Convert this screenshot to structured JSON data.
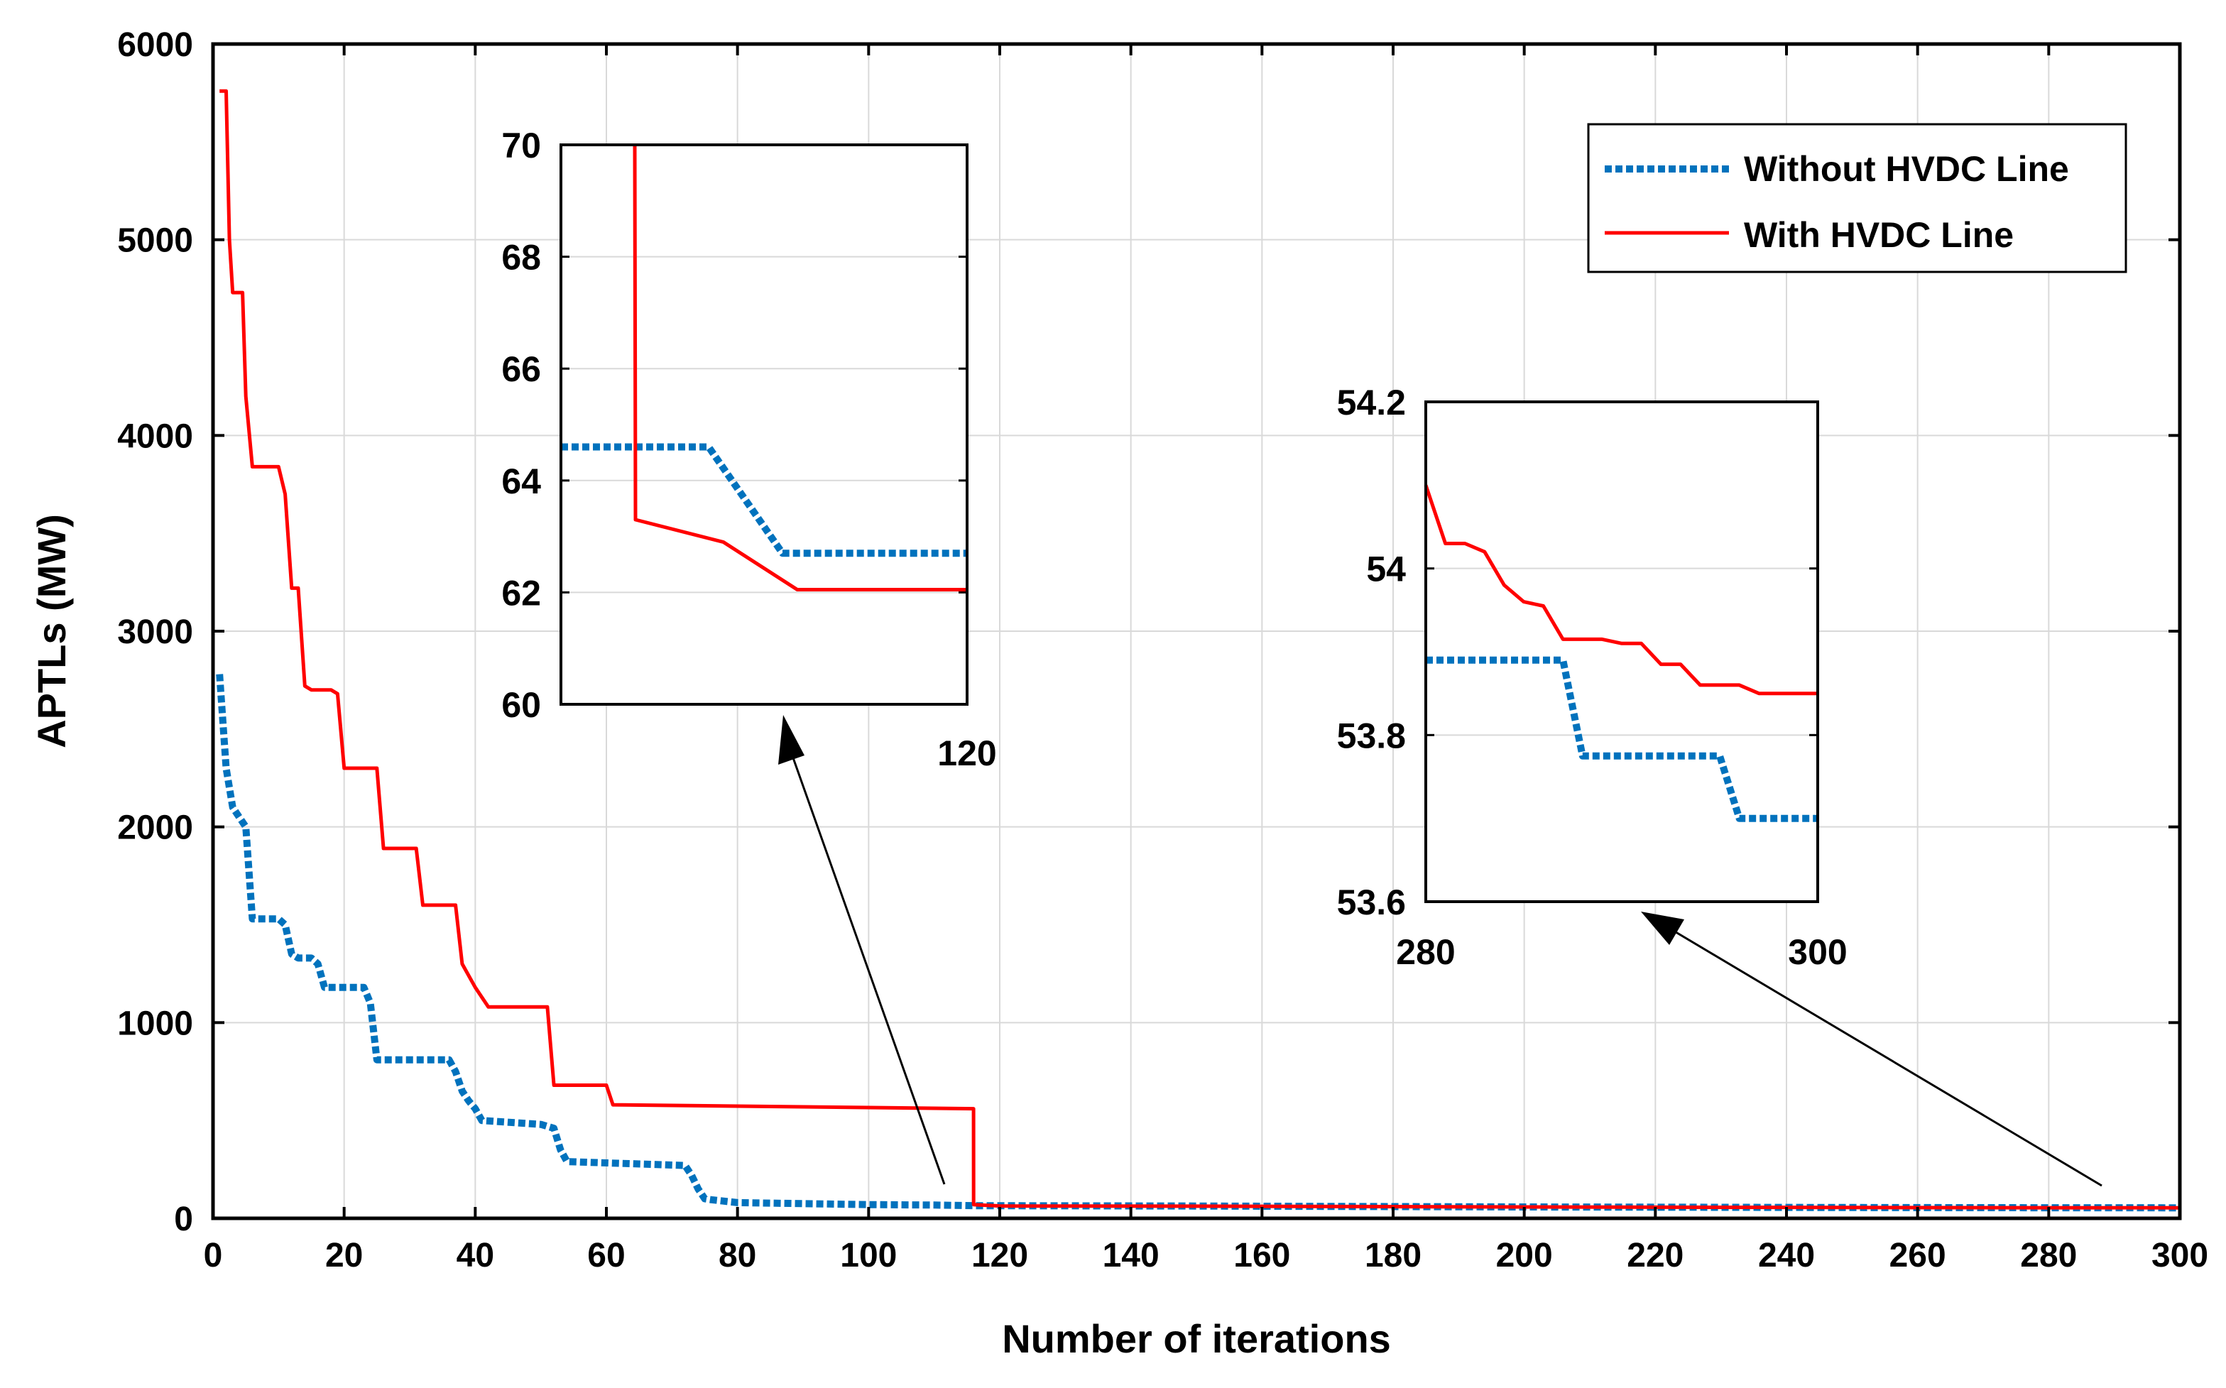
{
  "colors": {
    "without": "#0072BD",
    "with": "#FF0000",
    "grid": "#D9D9D9",
    "axis": "#000000",
    "background": "#FFFFFF"
  },
  "chart_data": {
    "type": "line",
    "title": "",
    "xlabel": "Number of iterations",
    "ylabel": "APTLs (MW)",
    "xlim": [
      0,
      300
    ],
    "ylim": [
      0,
      6000
    ],
    "grid": true,
    "legend_position": "top-right",
    "x_ticks": [
      "0",
      "20",
      "40",
      "60",
      "80",
      "100",
      "120",
      "140",
      "160",
      "180",
      "200",
      "220",
      "240",
      "260",
      "280",
      "300"
    ],
    "y_ticks": [
      "0",
      "1000",
      "2000",
      "3000",
      "4000",
      "5000",
      "6000"
    ],
    "series": [
      {
        "name": "Without HVDC Line",
        "style": "dotted",
        "color": "#0072BD",
        "x": [
          1,
          2,
          3,
          4,
          5,
          6,
          10,
          11,
          12,
          13,
          15,
          16,
          17,
          23,
          24,
          25,
          36,
          37,
          38,
          39,
          40,
          41,
          50,
          52,
          53,
          54,
          72,
          73,
          74,
          75,
          76,
          80,
          90,
          100,
          110,
          116,
          150,
          200,
          250,
          280,
          300
        ],
        "y": [
          2780,
          2300,
          2100,
          2050,
          2000,
          1530,
          1530,
          1500,
          1350,
          1330,
          1330,
          1300,
          1180,
          1180,
          1100,
          810,
          810,
          750,
          650,
          600,
          560,
          500,
          480,
          460,
          350,
          290,
          270,
          220,
          150,
          100,
          95,
          80,
          75,
          70,
          68,
          64.6,
          62.7,
          58,
          55,
          53.9,
          53.7
        ]
      },
      {
        "name": "With HVDC Line",
        "style": "solid",
        "color": "#FF0000",
        "x": [
          1,
          2,
          2.5,
          3,
          4.5,
          5,
          6,
          10,
          11,
          12,
          13,
          14,
          15,
          18,
          19,
          20,
          25,
          26,
          31,
          32,
          37,
          38,
          40,
          42,
          51,
          52,
          60,
          61,
          116,
          116.01,
          120,
          150,
          200,
          250,
          280,
          290,
          300
        ],
        "y": [
          5760,
          5760,
          5000,
          4730,
          4730,
          4200,
          3840,
          3840,
          3700,
          3220,
          3220,
          2720,
          2700,
          2700,
          2680,
          2300,
          2300,
          1890,
          1890,
          1600,
          1600,
          1300,
          1180,
          1080,
          1080,
          680,
          680,
          580,
          560,
          70,
          63.3,
          62.1,
          58,
          55,
          54.1,
          53.95,
          53.85
        ]
      }
    ],
    "insets": [
      {
        "name": "inset-1",
        "xlim": [
          65,
          120
        ],
        "ylim": [
          60,
          70
        ],
        "y_ticks": [
          "60",
          "62",
          "64",
          "66",
          "68",
          "70"
        ],
        "x_tick_label": "120",
        "series": [
          {
            "name": "Without HVDC Line",
            "x": [
              65,
              85,
              95,
              120
            ],
            "y": [
              64.6,
              64.6,
              62.7,
              62.7
            ]
          },
          {
            "name": "With HVDC Line",
            "x": [
              75,
              75,
              75.1,
              87,
              97,
              120
            ],
            "y": [
              70,
              70,
              63.3,
              62.9,
              62.05,
              62.05
            ]
          }
        ]
      },
      {
        "name": "inset-2",
        "xlim": [
          280,
          300
        ],
        "ylim": [
          53.6,
          54.2
        ],
        "y_ticks": [
          "53.6",
          "53.8",
          "54",
          "54.2"
        ],
        "x_tick_labels": [
          "280",
          "300"
        ],
        "series": [
          {
            "name": "Without HVDC Line",
            "x": [
              280,
              287,
              288,
              295,
              296,
              300
            ],
            "y": [
              53.89,
              53.89,
              53.775,
              53.775,
              53.7,
              53.7
            ]
          },
          {
            "name": "With HVDC Line",
            "x": [
              280,
              281,
              282,
              283,
              284,
              285,
              286,
              287,
              288,
              289,
              290,
              291,
              292,
              293,
              294,
              295,
              296,
              297,
              298,
              299,
              300
            ],
            "y": [
              54.1,
              54.03,
              54.03,
              54.02,
              53.98,
              53.96,
              53.955,
              53.915,
              53.915,
              53.915,
              53.91,
              53.91,
              53.885,
              53.885,
              53.86,
              53.86,
              53.86,
              53.85,
              53.85,
              53.85,
              53.85
            ]
          }
        ]
      }
    ]
  }
}
